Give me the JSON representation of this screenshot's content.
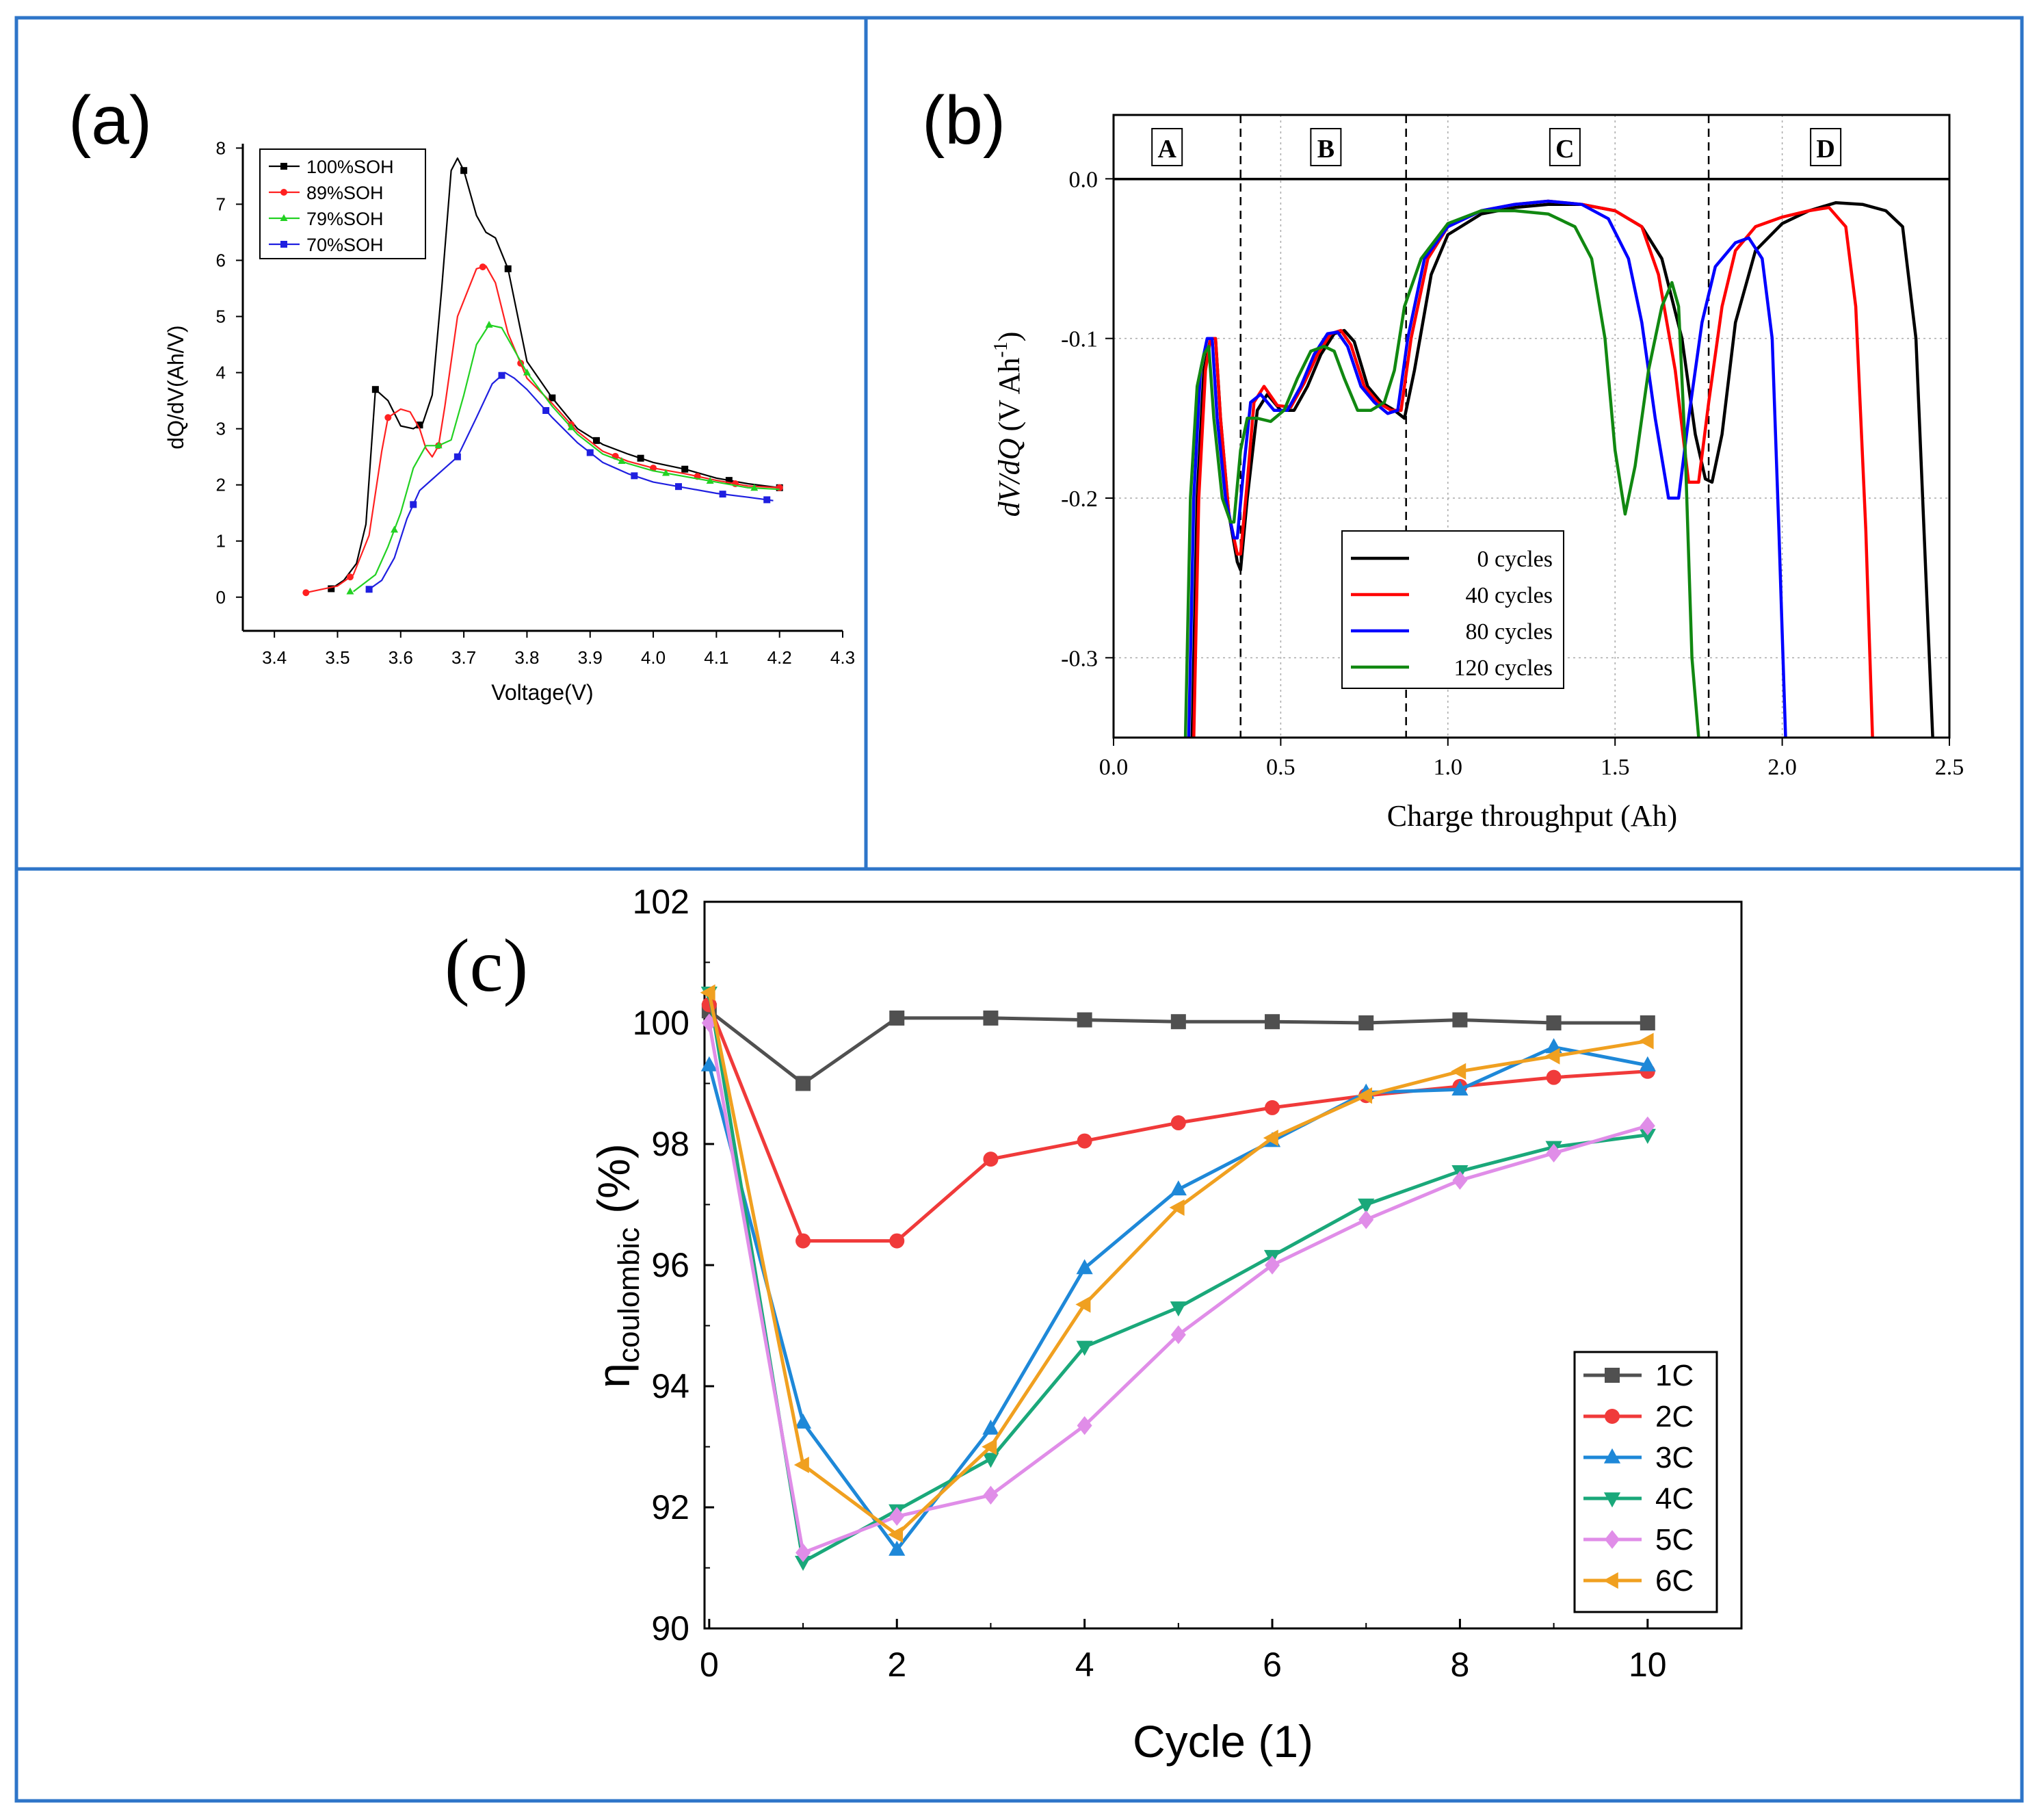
{
  "figure": {
    "border_color": "#2E75C8",
    "panels": [
      {
        "id": "a",
        "panel_label": "(a)",
        "type": "line",
        "xlabel": "Voltage(V)",
        "ylabel": "dQ/dV(Ah/V)",
        "xlim": [
          3.35,
          4.3
        ],
        "ylim": [
          -0.6,
          8.2
        ],
        "xticks": [
          3.4,
          3.5,
          3.6,
          3.7,
          3.8,
          3.9,
          4.0,
          4.1,
          4.2,
          4.3
        ],
        "yticks": [
          0,
          1,
          2,
          3,
          4,
          5,
          6,
          7,
          8
        ],
        "xtick_labels": [
          "3.4",
          "3.5",
          "3.6",
          "3.7",
          "3.8",
          "3.9",
          "4.0",
          "4.1",
          "4.2",
          "4.3"
        ],
        "ytick_labels": [
          "0",
          "1",
          "2",
          "3",
          "4",
          "5",
          "6",
          "7",
          "8"
        ],
        "legend_position": "top-left",
        "series": [
          {
            "name": "100%SOH",
            "color": "#000000",
            "marker": "square",
            "x": [
              3.49,
              3.51,
              3.53,
              3.545,
              3.56,
              3.58,
              3.6,
              3.62,
              3.635,
              3.65,
              3.665,
              3.68,
              3.69,
              3.7,
              3.72,
              3.735,
              3.75,
              3.77,
              3.8,
              3.84,
              3.88,
              3.92,
              3.96,
              4.0,
              4.05,
              4.1,
              4.15,
              4.2
            ],
            "y": [
              0.15,
              0.3,
              0.6,
              1.3,
              3.7,
              3.5,
              3.05,
              3.0,
              3.1,
              3.6,
              5.5,
              7.6,
              7.82,
              7.6,
              6.8,
              6.5,
              6.4,
              5.85,
              4.2,
              3.55,
              3.0,
              2.72,
              2.55,
              2.4,
              2.28,
              2.12,
              2.02,
              1.95
            ],
            "markers_x": [
              3.49,
              3.56,
              3.63,
              3.7,
              3.77,
              3.84,
              3.91,
              3.98,
              4.05,
              4.12,
              4.2
            ]
          },
          {
            "name": "89%SOH",
            "color": "#FF2020",
            "marker": "circle",
            "x": [
              3.45,
              3.5,
              3.525,
              3.55,
              3.57,
              3.58,
              3.6,
              3.615,
              3.63,
              3.64,
              3.65,
              3.66,
              3.67,
              3.69,
              3.72,
              3.735,
              3.75,
              3.77,
              3.8,
              3.84,
              3.88,
              3.92,
              3.96,
              4.0,
              4.05,
              4.1,
              4.15,
              4.2
            ],
            "y": [
              0.08,
              0.2,
              0.4,
              1.1,
              2.6,
              3.2,
              3.35,
              3.3,
              3.0,
              2.65,
              2.5,
              2.7,
              3.4,
              5.0,
              5.85,
              5.9,
              5.6,
              4.7,
              3.9,
              3.45,
              2.95,
              2.6,
              2.42,
              2.3,
              2.2,
              2.08,
              1.98,
              1.95
            ],
            "markers_x": [
              3.45,
              3.52,
              3.58,
              3.66,
              3.73,
              3.79,
              3.87,
              3.94,
              4.0,
              4.07,
              4.13,
              4.2
            ]
          },
          {
            "name": "79%SOH",
            "color": "#22D122",
            "marker": "triangle",
            "x": [
              3.525,
              3.56,
              3.58,
              3.6,
              3.62,
              3.64,
              3.66,
              3.68,
              3.7,
              3.72,
              3.74,
              3.76,
              3.78,
              3.8,
              3.84,
              3.88,
              3.92,
              3.96,
              4.0,
              4.05,
              4.1,
              4.15,
              4.2
            ],
            "y": [
              0.1,
              0.4,
              0.9,
              1.5,
              2.3,
              2.7,
              2.7,
              2.8,
              3.6,
              4.5,
              4.85,
              4.8,
              4.4,
              4.0,
              3.4,
              2.9,
              2.55,
              2.38,
              2.25,
              2.15,
              2.05,
              1.95,
              1.92
            ],
            "markers_x": [
              3.52,
              3.59,
              3.66,
              3.74,
              3.8,
              3.87,
              3.95,
              4.02,
              4.09,
              4.16
            ]
          },
          {
            "name": "70%SOH",
            "color": "#1F1FE0",
            "marker": "square",
            "x": [
              3.545,
              3.57,
              3.59,
              3.61,
              3.63,
              3.65,
              3.67,
              3.69,
              3.72,
              3.745,
              3.765,
              3.78,
              3.8,
              3.84,
              3.88,
              3.92,
              3.96,
              4.0,
              4.05,
              4.1,
              4.15,
              4.19
            ],
            "y": [
              0.1,
              0.3,
              0.7,
              1.4,
              1.9,
              2.1,
              2.3,
              2.5,
              3.2,
              3.8,
              4.0,
              3.9,
              3.7,
              3.2,
              2.75,
              2.4,
              2.2,
              2.05,
              1.95,
              1.85,
              1.78,
              1.72
            ],
            "markers_x": [
              3.55,
              3.62,
              3.69,
              3.76,
              3.83,
              3.9,
              3.97,
              4.04,
              4.11,
              4.18
            ]
          }
        ]
      },
      {
        "id": "b",
        "panel_label": "(b)",
        "type": "line",
        "xlabel": "Charge throughput (Ah)",
        "ylabel_main": "dV/dQ",
        "ylabel_unit": "(V Ah",
        "ylabel_exp": "-1",
        "ylabel_close": ")",
        "xlim": [
          0.0,
          2.5
        ],
        "ylim": [
          -0.35,
          0.04
        ],
        "xticks": [
          0.0,
          0.5,
          1.0,
          1.5,
          2.0,
          2.5
        ],
        "yticks": [
          0.0,
          -0.1,
          -0.2,
          -0.3
        ],
        "xtick_labels": [
          "0.0",
          "0.5",
          "1.0",
          "1.5",
          "2.0",
          "2.5"
        ],
        "ytick_labels": [
          "0.0",
          "-0.1",
          "-0.2",
          "-0.3"
        ],
        "region_labels": [
          "A",
          "B",
          "C",
          "D"
        ],
        "region_label_x": [
          0.16,
          0.635,
          1.35,
          2.13
        ],
        "region_dividers_x": [
          0.38,
          0.875,
          1.78
        ],
        "minor_gridlines_x": [
          0.5,
          1.0,
          1.5,
          2.0
        ],
        "legend_position": "lower-left",
        "series": [
          {
            "name": "0 cycles",
            "color": "#000000",
            "x": [
              0.235,
              0.25,
              0.27,
              0.29,
              0.305,
              0.32,
              0.345,
              0.37,
              0.38,
              0.4,
              0.43,
              0.46,
              0.5,
              0.54,
              0.58,
              0.62,
              0.66,
              0.69,
              0.72,
              0.76,
              0.8,
              0.84,
              0.87,
              0.9,
              0.95,
              1.0,
              1.1,
              1.2,
              1.3,
              1.4,
              1.5,
              1.58,
              1.64,
              1.7,
              1.74,
              1.77,
              1.79,
              1.82,
              1.86,
              1.92,
              2.0,
              2.08,
              2.16,
              2.24,
              2.31,
              2.36,
              2.4,
              2.43,
              2.45
            ],
            "y": [
              -0.35,
              -0.2,
              -0.12,
              -0.1,
              -0.1,
              -0.15,
              -0.21,
              -0.24,
              -0.245,
              -0.2,
              -0.145,
              -0.135,
              -0.145,
              -0.145,
              -0.13,
              -0.11,
              -0.097,
              -0.095,
              -0.102,
              -0.13,
              -0.14,
              -0.145,
              -0.15,
              -0.12,
              -0.06,
              -0.035,
              -0.022,
              -0.018,
              -0.016,
              -0.016,
              -0.02,
              -0.03,
              -0.05,
              -0.1,
              -0.16,
              -0.188,
              -0.19,
              -0.16,
              -0.09,
              -0.045,
              -0.028,
              -0.02,
              -0.015,
              -0.016,
              -0.02,
              -0.03,
              -0.1,
              -0.25,
              -0.35
            ]
          },
          {
            "name": "40 cycles",
            "color": "#FF0000",
            "x": [
              0.24,
              0.255,
              0.275,
              0.29,
              0.305,
              0.32,
              0.345,
              0.37,
              0.38,
              0.4,
              0.42,
              0.45,
              0.49,
              0.53,
              0.57,
              0.61,
              0.65,
              0.68,
              0.71,
              0.75,
              0.79,
              0.83,
              0.86,
              0.89,
              0.94,
              1.0,
              1.1,
              1.2,
              1.3,
              1.4,
              1.5,
              1.58,
              1.63,
              1.68,
              1.72,
              1.75,
              1.78,
              1.82,
              1.86,
              1.92,
              2.0,
              2.08,
              2.14,
              2.19,
              2.22,
              2.25,
              2.27
            ],
            "y": [
              -0.35,
              -0.2,
              -0.12,
              -0.1,
              -0.1,
              -0.15,
              -0.21,
              -0.235,
              -0.235,
              -0.19,
              -0.14,
              -0.13,
              -0.142,
              -0.143,
              -0.128,
              -0.11,
              -0.097,
              -0.095,
              -0.104,
              -0.13,
              -0.14,
              -0.145,
              -0.145,
              -0.1,
              -0.05,
              -0.03,
              -0.02,
              -0.016,
              -0.014,
              -0.016,
              -0.02,
              -0.03,
              -0.06,
              -0.12,
              -0.19,
              -0.19,
              -0.14,
              -0.08,
              -0.045,
              -0.03,
              -0.024,
              -0.02,
              -0.018,
              -0.03,
              -0.08,
              -0.22,
              -0.35
            ]
          },
          {
            "name": "80 cycles",
            "color": "#0000FF",
            "x": [
              0.225,
              0.24,
              0.26,
              0.28,
              0.295,
              0.31,
              0.335,
              0.36,
              0.37,
              0.39,
              0.41,
              0.44,
              0.48,
              0.52,
              0.56,
              0.6,
              0.64,
              0.67,
              0.7,
              0.74,
              0.78,
              0.82,
              0.85,
              0.88,
              0.93,
              1.0,
              1.1,
              1.2,
              1.3,
              1.4,
              1.48,
              1.54,
              1.58,
              1.62,
              1.66,
              1.69,
              1.72,
              1.76,
              1.8,
              1.86,
              1.9,
              1.94,
              1.97,
              1.99,
              2.01
            ],
            "y": [
              -0.35,
              -0.2,
              -0.12,
              -0.1,
              -0.1,
              -0.15,
              -0.2,
              -0.225,
              -0.225,
              -0.18,
              -0.14,
              -0.135,
              -0.145,
              -0.145,
              -0.13,
              -0.11,
              -0.097,
              -0.096,
              -0.105,
              -0.13,
              -0.14,
              -0.147,
              -0.145,
              -0.1,
              -0.05,
              -0.03,
              -0.02,
              -0.016,
              -0.014,
              -0.016,
              -0.025,
              -0.05,
              -0.09,
              -0.15,
              -0.2,
              -0.2,
              -0.15,
              -0.09,
              -0.055,
              -0.04,
              -0.037,
              -0.05,
              -0.1,
              -0.22,
              -0.35
            ]
          },
          {
            "name": "120 cycles",
            "color": "#118811",
            "x": [
              0.215,
              0.23,
              0.25,
              0.27,
              0.285,
              0.3,
              0.325,
              0.35,
              0.36,
              0.38,
              0.4,
              0.43,
              0.47,
              0.51,
              0.55,
              0.59,
              0.63,
              0.66,
              0.69,
              0.73,
              0.77,
              0.81,
              0.84,
              0.87,
              0.92,
              1.0,
              1.1,
              1.2,
              1.3,
              1.38,
              1.43,
              1.47,
              1.5,
              1.53,
              1.56,
              1.6,
              1.64,
              1.67,
              1.69,
              1.71,
              1.73,
              1.75
            ],
            "y": [
              -0.35,
              -0.2,
              -0.13,
              -0.11,
              -0.105,
              -0.15,
              -0.2,
              -0.215,
              -0.215,
              -0.17,
              -0.15,
              -0.15,
              -0.152,
              -0.145,
              -0.125,
              -0.108,
              -0.105,
              -0.108,
              -0.125,
              -0.145,
              -0.145,
              -0.14,
              -0.12,
              -0.08,
              -0.05,
              -0.028,
              -0.02,
              -0.02,
              -0.022,
              -0.03,
              -0.05,
              -0.1,
              -0.17,
              -0.21,
              -0.18,
              -0.12,
              -0.08,
              -0.065,
              -0.08,
              -0.17,
              -0.3,
              -0.35
            ]
          }
        ]
      },
      {
        "id": "c",
        "panel_label": "(c)",
        "type": "line",
        "xlabel": "Cycle (1)",
        "ylabel_main": "η",
        "ylabel_sub": "coulombic",
        "ylabel_unit": "(%)",
        "xlim": [
          0,
          11
        ],
        "ylim": [
          90,
          102
        ],
        "xticks": [
          0,
          2,
          4,
          6,
          8,
          10
        ],
        "yticks": [
          90,
          92,
          94,
          96,
          98,
          100,
          102
        ],
        "xtick_labels": [
          "0",
          "2",
          "4",
          "6",
          "8",
          "10"
        ],
        "ytick_labels": [
          "90",
          "92",
          "94",
          "96",
          "98",
          "100",
          "102"
        ],
        "legend_position": "lower-right",
        "categories": [
          0,
          1,
          2,
          3,
          4,
          5,
          6,
          7,
          8,
          9,
          10
        ],
        "series": [
          {
            "name": "1C",
            "color": "#505050",
            "marker": "square",
            "values": [
              100.2,
              99.0,
              100.08,
              100.08,
              100.05,
              100.02,
              100.02,
              100.0,
              100.05,
              100.0,
              100.0
            ]
          },
          {
            "name": "2C",
            "color": "#F03A3A",
            "marker": "circle",
            "values": [
              100.3,
              96.4,
              96.4,
              97.75,
              98.05,
              98.35,
              98.6,
              98.8,
              98.95,
              99.1,
              99.2
            ]
          },
          {
            "name": "3C",
            "color": "#1E88D8",
            "marker": "triangle-up",
            "values": [
              99.3,
              93.4,
              91.3,
              93.3,
              95.95,
              97.25,
              98.05,
              98.85,
              98.9,
              99.6,
              99.3
            ]
          },
          {
            "name": "4C",
            "color": "#1AA87A",
            "marker": "triangle-down",
            "values": [
              100.5,
              91.1,
              91.95,
              92.8,
              94.65,
              95.3,
              96.15,
              97.0,
              97.55,
              97.95,
              98.15
            ]
          },
          {
            "name": "5C",
            "color": "#E08DE8",
            "marker": "diamond",
            "values": [
              100.0,
              91.25,
              91.85,
              92.2,
              93.35,
              94.85,
              96.0,
              96.75,
              97.4,
              97.85,
              98.3
            ]
          },
          {
            "name": "6C",
            "color": "#F0A020",
            "marker": "triangle-left",
            "values": [
              100.5,
              92.7,
              91.55,
              93.0,
              95.35,
              96.95,
              98.1,
              98.8,
              99.2,
              99.45,
              99.7
            ]
          }
        ]
      }
    ]
  }
}
